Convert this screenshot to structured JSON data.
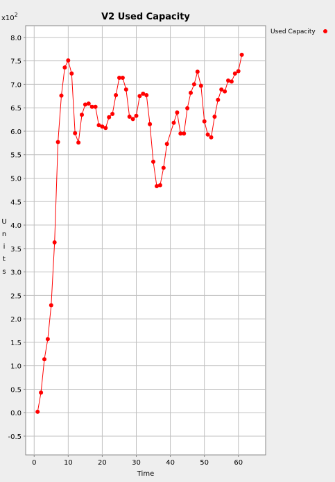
{
  "chart_data": {
    "type": "line",
    "title": "V2 Used Capacity",
    "xlabel": "Time",
    "ylabel": "Units",
    "y_multiplier_label": "x10",
    "y_multiplier_exponent": "2",
    "xlim": [
      -2.5,
      68
    ],
    "ylim": [
      -0.9,
      8.25
    ],
    "x_ticks": [
      0,
      10,
      20,
      30,
      40,
      50,
      60
    ],
    "y_ticks": [
      -0.5,
      0.0,
      0.5,
      1.0,
      1.5,
      2.0,
      2.5,
      3.0,
      3.5,
      4.0,
      4.5,
      5.0,
      5.5,
      6.0,
      6.5,
      7.0,
      7.5,
      8.0
    ],
    "grid": true,
    "legend_position": "right",
    "series": [
      {
        "name": "Used Capacity",
        "color": "#ff0000",
        "x": [
          1,
          2,
          3,
          4,
          5,
          6,
          7,
          8,
          9,
          10,
          11,
          12,
          13,
          14,
          15,
          16,
          17,
          18,
          19,
          20,
          21,
          22,
          23,
          24,
          25,
          26,
          27,
          28,
          29,
          30,
          31,
          32,
          33,
          34,
          35,
          36,
          37,
          38,
          39,
          41,
          42,
          43,
          44,
          45,
          46,
          47,
          48,
          49,
          50,
          51,
          52,
          53,
          54,
          55,
          56,
          57,
          58,
          59,
          60,
          61
        ],
        "y": [
          0.02,
          0.43,
          1.14,
          1.57,
          2.29,
          3.63,
          5.77,
          6.76,
          7.36,
          7.51,
          7.23,
          5.96,
          5.76,
          6.35,
          6.57,
          6.59,
          6.52,
          6.52,
          6.13,
          6.1,
          6.07,
          6.3,
          6.37,
          6.77,
          7.14,
          7.14,
          6.89,
          6.31,
          6.26,
          6.33,
          6.75,
          6.8,
          6.77,
          6.15,
          5.35,
          4.83,
          4.85,
          5.22,
          5.73,
          6.18,
          6.4,
          5.95,
          5.95,
          6.49,
          6.82,
          7.0,
          7.27,
          6.97,
          6.21,
          5.93,
          5.87,
          6.31,
          6.67,
          6.89,
          6.85,
          7.08,
          7.06,
          7.23,
          7.28,
          7.63
        ]
      }
    ]
  }
}
